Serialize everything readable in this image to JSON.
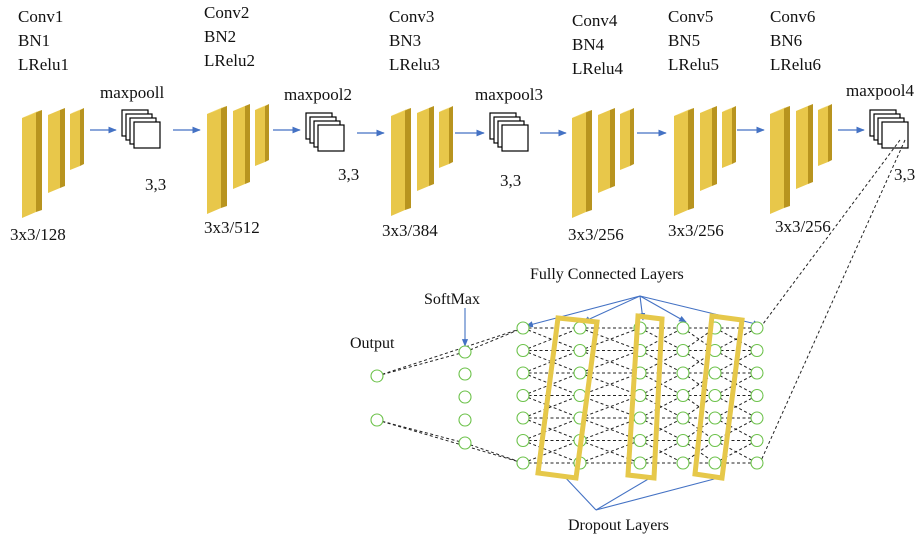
{
  "conv_blocks": [
    {
      "lines": [
        "Conv1",
        "BN1",
        "LRelu1"
      ],
      "size": "3x3/128"
    },
    {
      "lines": [
        "Conv2",
        "BN2",
        "LRelu2"
      ],
      "size": "3x3/512"
    },
    {
      "lines": [
        "Conv3",
        "BN3",
        "LRelu3"
      ],
      "size": "3x3/384"
    },
    {
      "lines": [
        "Conv4",
        "BN4",
        "LRelu4"
      ],
      "size": "3x3/256"
    },
    {
      "lines": [
        "Conv5",
        "BN5",
        "LRelu5"
      ],
      "size": "3x3/256"
    },
    {
      "lines": [
        "Conv6",
        "BN6",
        "LRelu6"
      ],
      "size": "3x3/256"
    }
  ],
  "pools": [
    {
      "label": "maxpooll",
      "size": "3,3"
    },
    {
      "label": "maxpool2",
      "size": "3,3"
    },
    {
      "label": "maxpool3",
      "size": "3,3"
    },
    {
      "label": "maxpool4",
      "size": "3,3"
    }
  ],
  "fc": {
    "title": "Fully Connected Layers",
    "softmax": "SoftMax",
    "output": "Output",
    "dropout": "Dropout Layers"
  },
  "colors": {
    "conv_face": "#e8c74a",
    "conv_dark": "#b8941f",
    "conv_light": "#f3dc7a",
    "arrow": "#4472c4",
    "node": "#6cc24a",
    "dropout": "#e6c84a"
  }
}
